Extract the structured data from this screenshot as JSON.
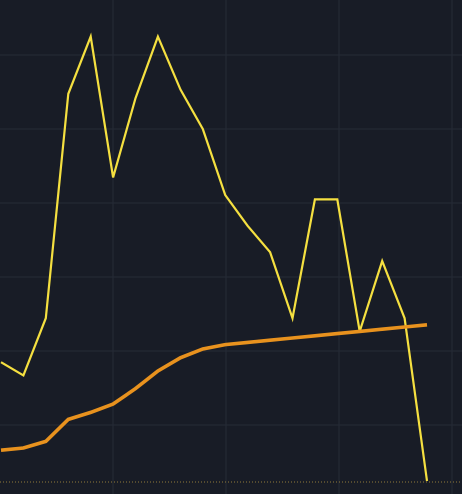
{
  "chart_data": {
    "type": "line",
    "title": "",
    "xlabel": "",
    "ylabel": "",
    "grid": true,
    "legend": "none",
    "x": [
      0,
      1,
      2,
      3,
      4,
      5,
      6,
      7,
      8,
      9,
      10,
      11,
      12,
      13,
      14,
      15,
      16,
      17,
      18,
      19
    ],
    "xlim": [
      0,
      19
    ],
    "ylim": [
      0,
      100
    ],
    "series": [
      {
        "color": "#f5e040",
        "values": [
          27,
          24,
          37,
          88,
          101,
          69,
          87,
          101,
          89,
          80,
          65,
          58,
          52,
          37,
          64,
          64,
          34,
          50,
          37,
          0
        ]
      },
      {
        "color": "#e8921e",
        "values": [
          7,
          7.5,
          9,
          14,
          15.6,
          17.5,
          21,
          25,
          28,
          30,
          31,
          31.5,
          32,
          32.5,
          33,
          33.5,
          34,
          34.5,
          35,
          35.5
        ]
      }
    ],
    "colors": {
      "background": "#181c26",
      "grid": "#262b36",
      "baseline": "#8f7a3a"
    }
  }
}
